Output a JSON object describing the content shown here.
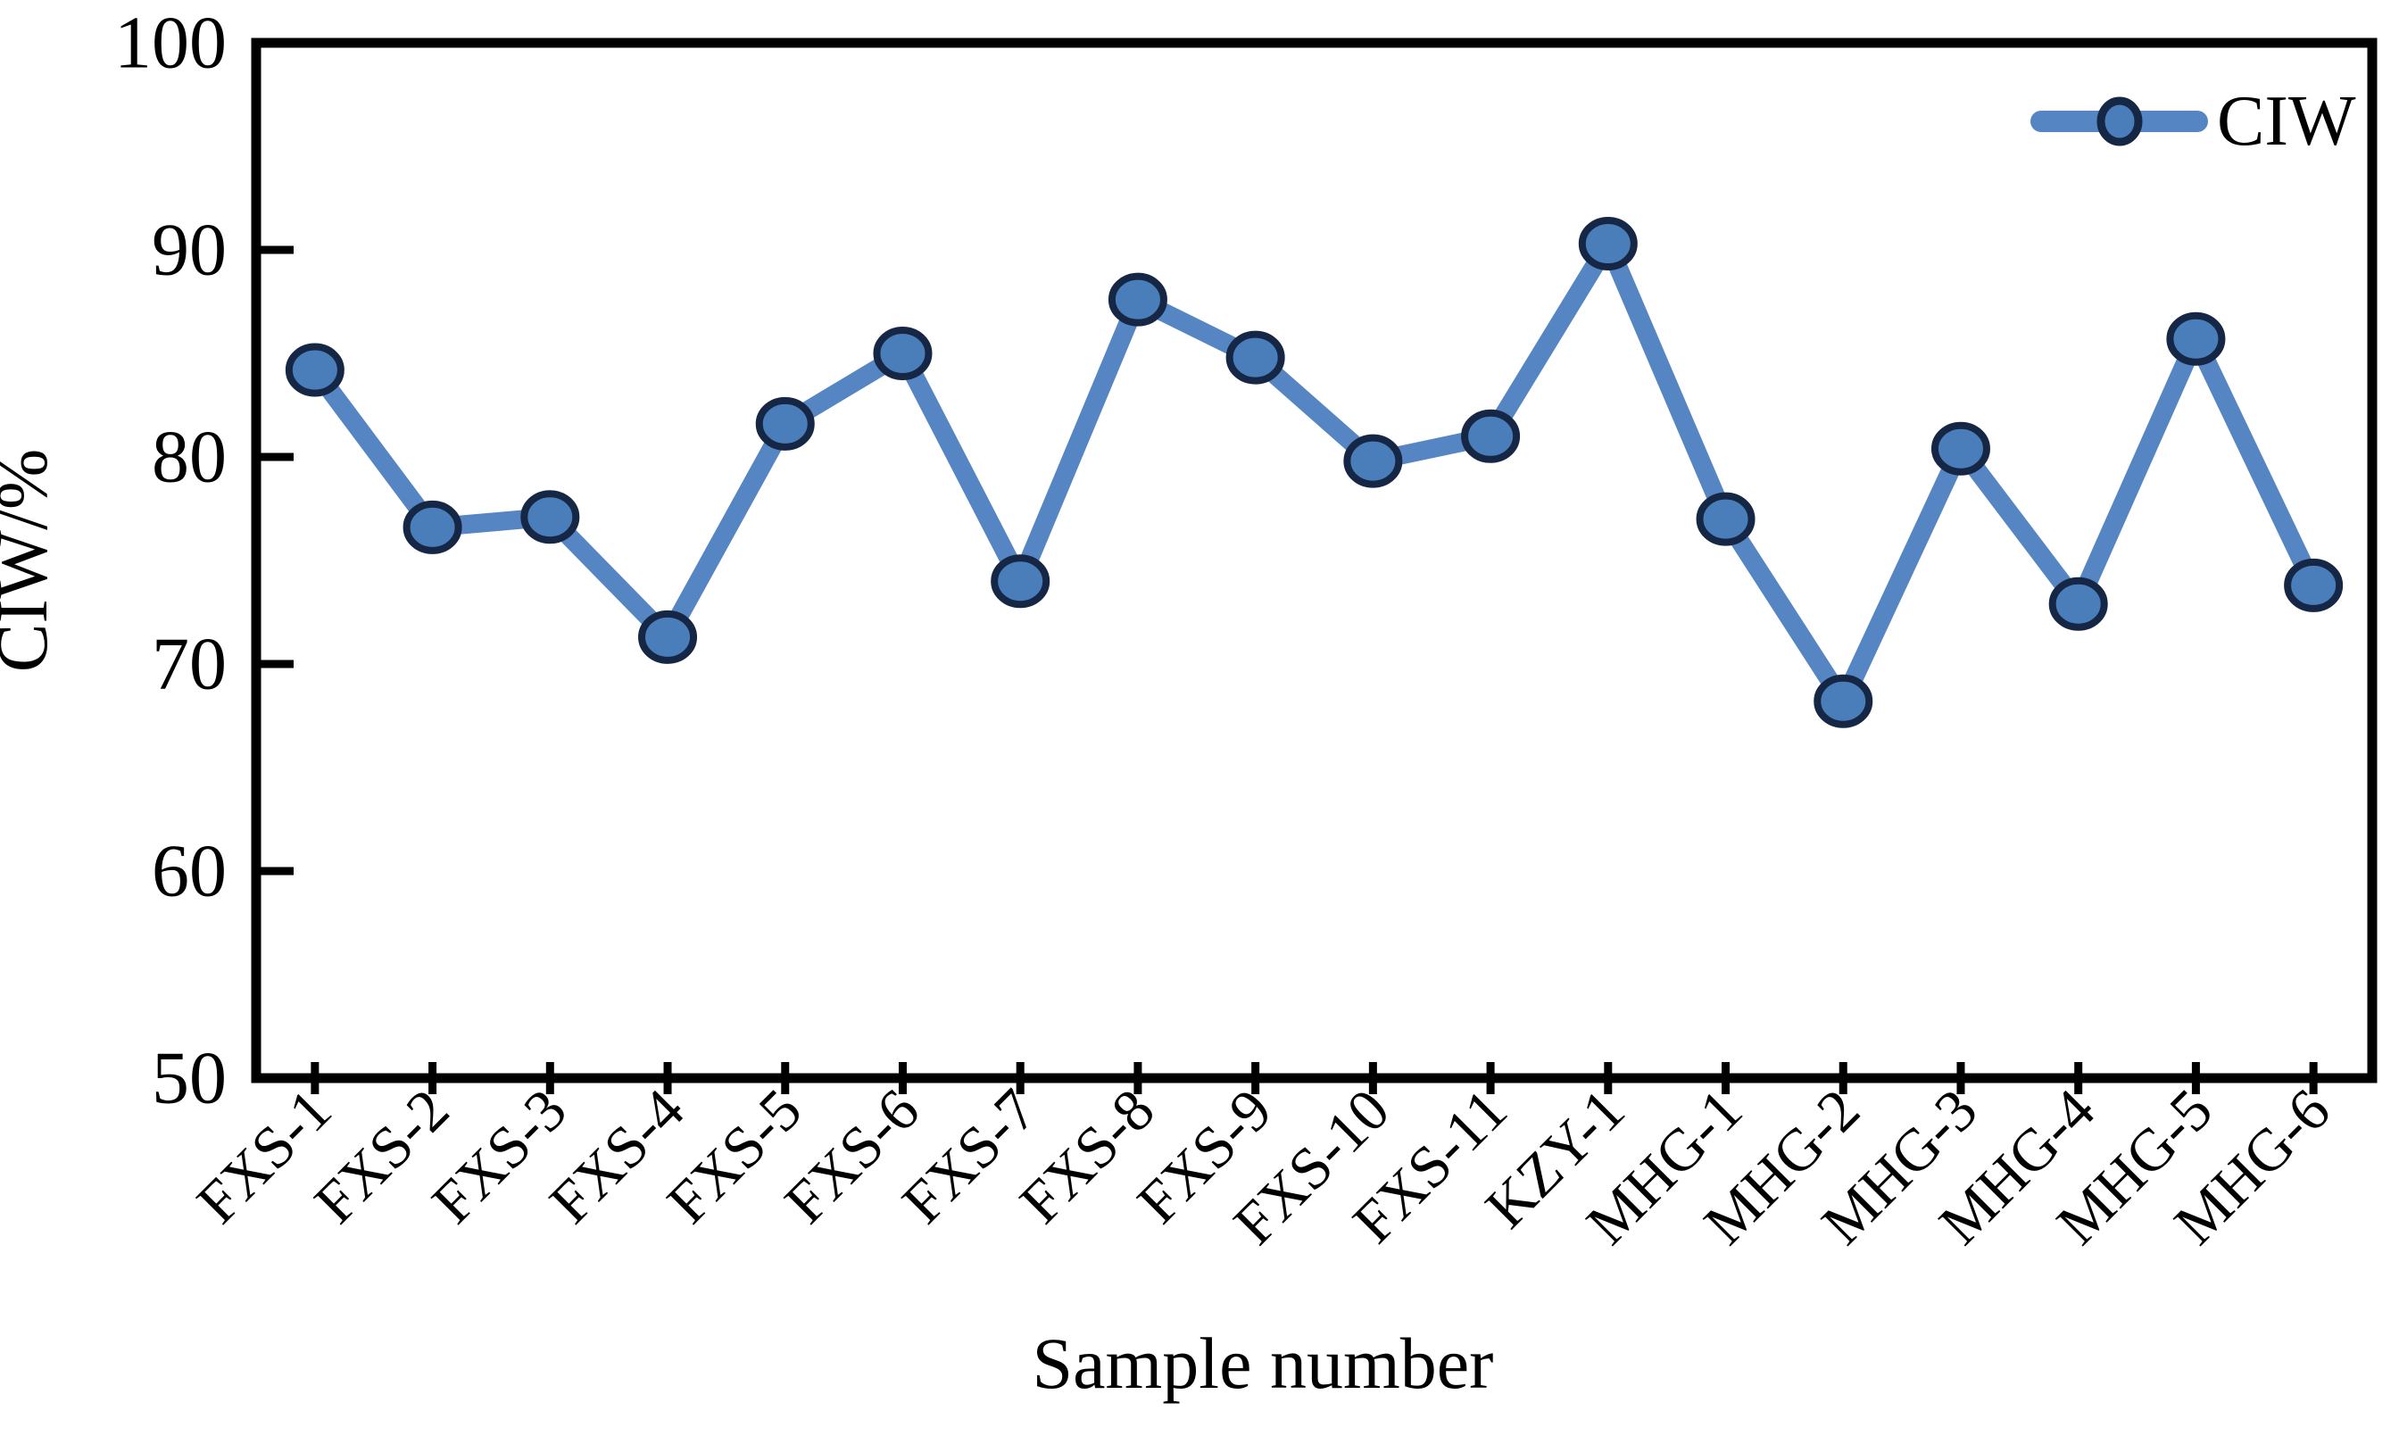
{
  "chart_data": {
    "type": "line",
    "title": "",
    "categories": [
      "FXS-1",
      "FXS-2",
      "FXS-3",
      "FXS-4",
      "FXS-5",
      "FXS-6",
      "FXS-7",
      "FXS-8",
      "FXS-9",
      "FXS-10",
      "FXS-11",
      "KZY-1",
      "MHG-1",
      "MHG-2",
      "MHG-3",
      "MHG-4",
      "MHG-5",
      "MHG-6"
    ],
    "series": [
      {
        "name": "CIW",
        "values": [
          84.2,
          76.6,
          77.1,
          71.3,
          81.6,
          85.0,
          74.0,
          87.6,
          84.8,
          79.8,
          81.0,
          90.3,
          77.0,
          68.2,
          80.4,
          72.9,
          85.7,
          73.8
        ]
      }
    ],
    "xlabel": "Sample number",
    "ylabel": "CIW/%",
    "ylim": [
      50,
      100
    ],
    "yticks": [
      50,
      60,
      70,
      80,
      90,
      100
    ],
    "grid": false,
    "legend": {
      "label": "CIW",
      "position": "top-right-inside"
    }
  },
  "colors": {
    "line": "#5585C2",
    "marker_fill": "#4A7EBB",
    "marker_border": "#152744",
    "axis": "#000000",
    "text": "#000000",
    "background": "#FFFFFF"
  }
}
